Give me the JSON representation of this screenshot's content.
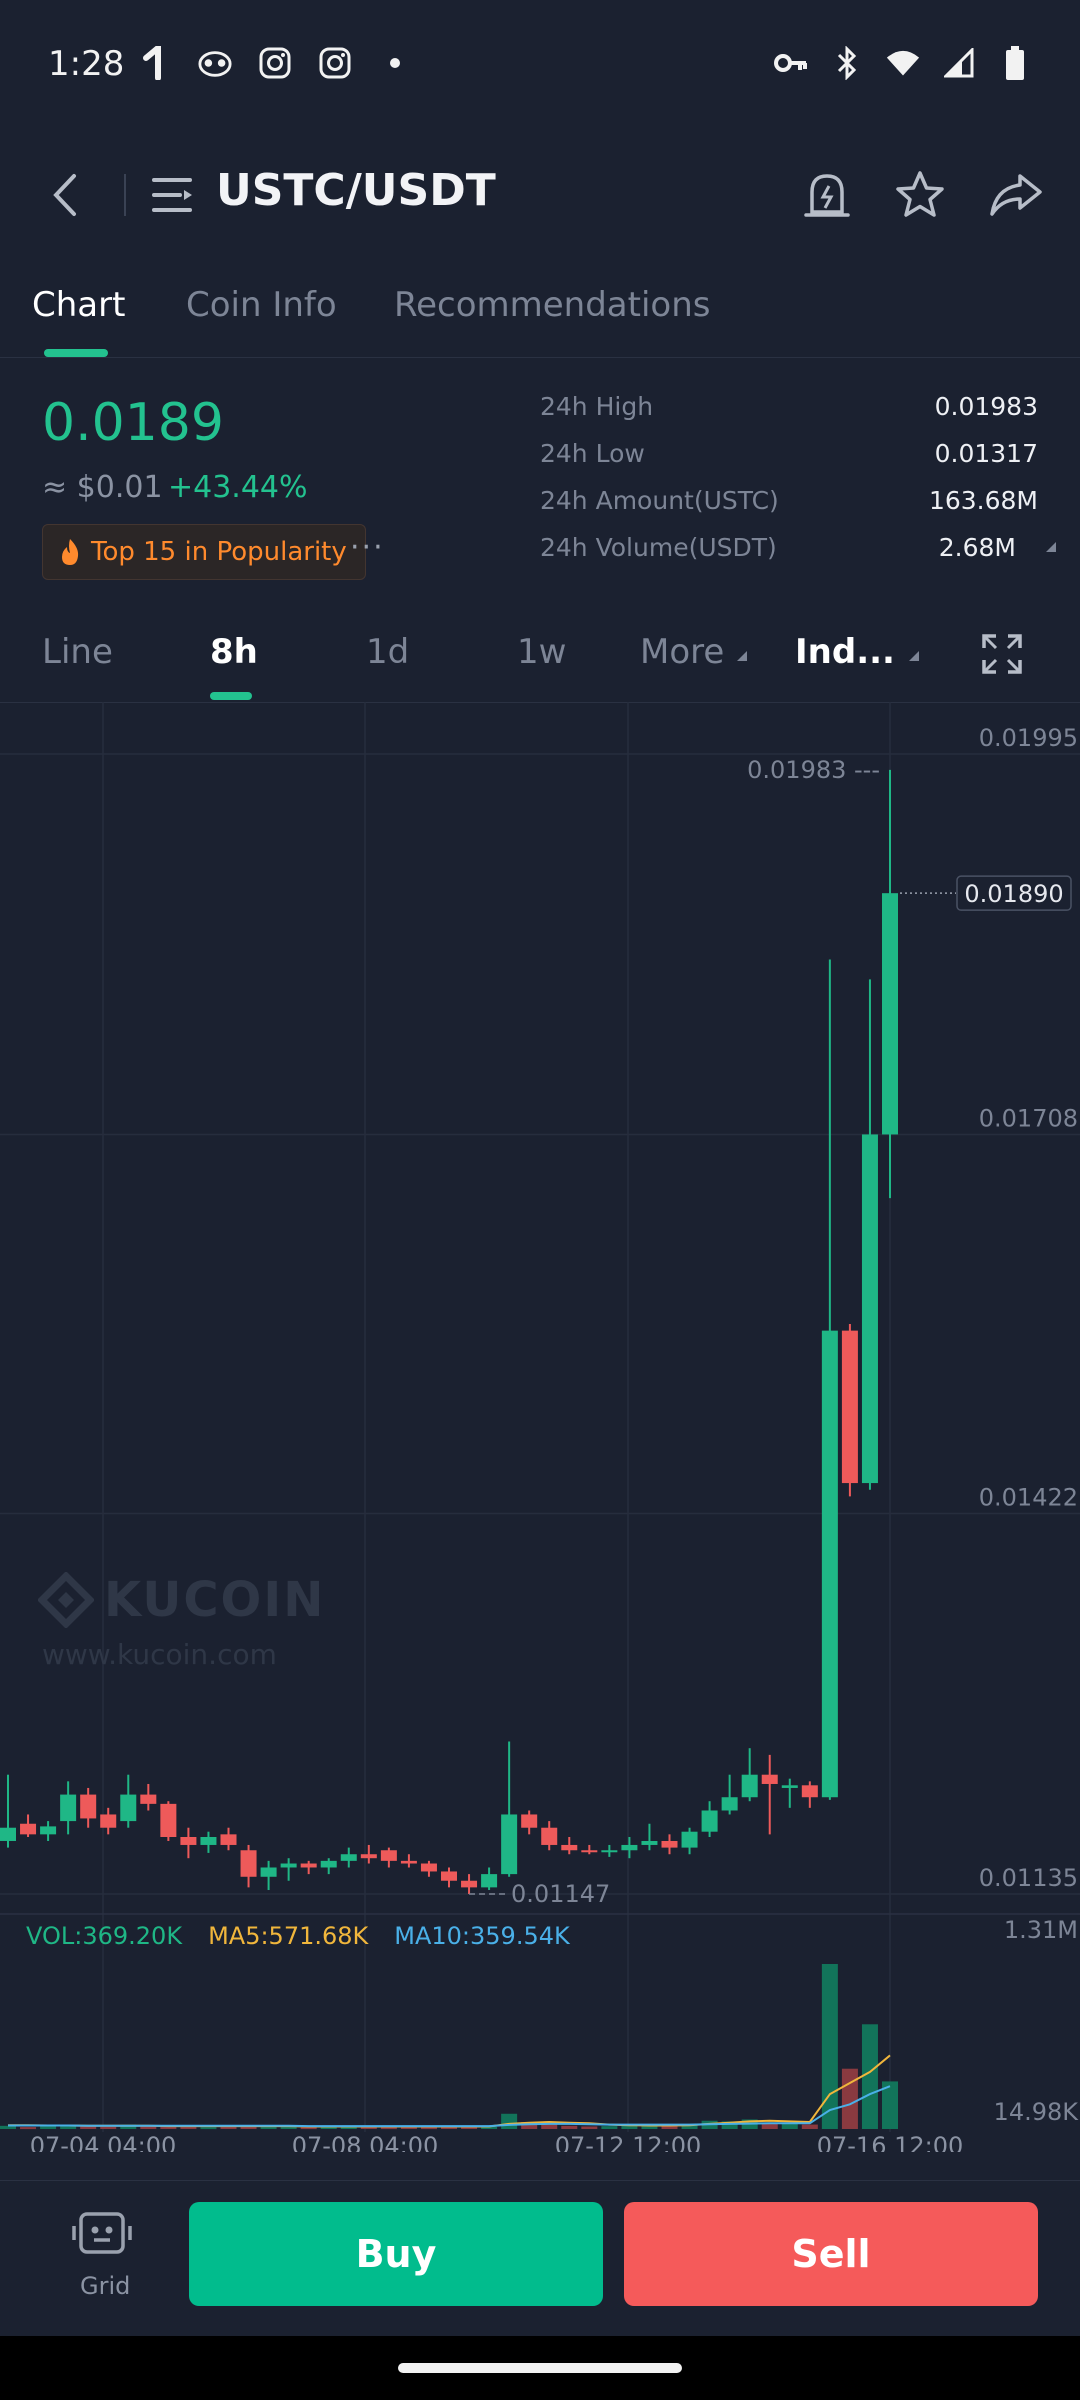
{
  "status_bar": {
    "time": "1:28",
    "left_icons": [
      "notification-icon",
      "owl-app-icon",
      "instagram-icon",
      "instagram-icon",
      "dot-icon"
    ],
    "right_icons": [
      "key-icon",
      "bluetooth-icon",
      "wifi-icon",
      "signal-icon",
      "battery-icon"
    ]
  },
  "header": {
    "title": "USTC/USDT"
  },
  "tabs": [
    "Chart",
    "Coin Info",
    "Recommendations"
  ],
  "ticker": {
    "price": "0.0189",
    "usd": "≈ $0.01",
    "change": "+43.44%",
    "badge": "Top 15 in Popularity",
    "more": "···"
  },
  "stats": [
    {
      "label": "24h High",
      "value": "0.01983"
    },
    {
      "label": "24h Low",
      "value": "0.01317"
    },
    {
      "label": "24h Amount(USTC)",
      "value": "163.68M"
    },
    {
      "label": "24h Volume(USDT)",
      "value": "2.68M"
    }
  ],
  "timeframes": [
    "Line",
    "8h",
    "1d",
    "1w",
    "More",
    "Ind..."
  ],
  "chart_data": {
    "type": "candlestick",
    "price_axis_ticks": [
      "0.01995",
      "0.01708",
      "0.01422",
      "0.01135"
    ],
    "current_price_label": "0.01890",
    "high_marker": "0.01983",
    "low_marker": "0.01147",
    "ylim": [
      0.01135,
      0.01995
    ],
    "volume_axis_ticks": [
      "1.31M",
      "14.98K"
    ],
    "x_ticks": [
      "07-04 04:00",
      "07-08 04:00",
      "07-12 12:00",
      "07-16 12:00"
    ],
    "volume_legend": {
      "vol": "VOL:369.20K",
      "ma5": "MA5:571.68K",
      "ma10": "MA10:359.54K"
    },
    "colors": {
      "up": "#1fb786",
      "down": "#ee5a5a",
      "ma5": "#f0b63c",
      "ma10": "#4ab0e8"
    },
    "watermark": {
      "brand": "KUCOIN",
      "url": "www.kucoin.com"
    },
    "candles": [
      {
        "o": 0.01175,
        "h": 0.01225,
        "l": 0.0117,
        "c": 0.01185
      },
      {
        "o": 0.01188,
        "h": 0.01195,
        "l": 0.01178,
        "c": 0.0118
      },
      {
        "o": 0.0118,
        "h": 0.0119,
        "l": 0.01175,
        "c": 0.01186
      },
      {
        "o": 0.0119,
        "h": 0.0122,
        "l": 0.0118,
        "c": 0.0121
      },
      {
        "o": 0.0121,
        "h": 0.01215,
        "l": 0.01185,
        "c": 0.01192
      },
      {
        "o": 0.01195,
        "h": 0.012,
        "l": 0.0118,
        "c": 0.01185
      },
      {
        "o": 0.0119,
        "h": 0.01225,
        "l": 0.01185,
        "c": 0.0121
      },
      {
        "o": 0.0121,
        "h": 0.01218,
        "l": 0.01198,
        "c": 0.01203
      },
      {
        "o": 0.01203,
        "h": 0.01205,
        "l": 0.01175,
        "c": 0.01178
      },
      {
        "o": 0.01178,
        "h": 0.01185,
        "l": 0.01162,
        "c": 0.01172
      },
      {
        "o": 0.01172,
        "h": 0.01182,
        "l": 0.01166,
        "c": 0.01178
      },
      {
        "o": 0.0118,
        "h": 0.01185,
        "l": 0.01168,
        "c": 0.01172
      },
      {
        "o": 0.01168,
        "h": 0.01172,
        "l": 0.0114,
        "c": 0.01148
      },
      {
        "o": 0.01148,
        "h": 0.0116,
        "l": 0.01138,
        "c": 0.01155
      },
      {
        "o": 0.01155,
        "h": 0.01162,
        "l": 0.01145,
        "c": 0.01158
      },
      {
        "o": 0.01158,
        "h": 0.0116,
        "l": 0.0115,
        "c": 0.01155
      },
      {
        "o": 0.01155,
        "h": 0.01162,
        "l": 0.0115,
        "c": 0.0116
      },
      {
        "o": 0.0116,
        "h": 0.0117,
        "l": 0.01155,
        "c": 0.01165
      },
      {
        "o": 0.01165,
        "h": 0.01172,
        "l": 0.01158,
        "c": 0.01162
      },
      {
        "o": 0.01168,
        "h": 0.0117,
        "l": 0.01155,
        "c": 0.0116
      },
      {
        "o": 0.0116,
        "h": 0.01165,
        "l": 0.01155,
        "c": 0.01158
      },
      {
        "o": 0.01158,
        "h": 0.0116,
        "l": 0.01148,
        "c": 0.01152
      },
      {
        "o": 0.01152,
        "h": 0.01155,
        "l": 0.0114,
        "c": 0.01145
      },
      {
        "o": 0.01145,
        "h": 0.0115,
        "l": 0.01135,
        "c": 0.0114
      },
      {
        "o": 0.0114,
        "h": 0.01155,
        "l": 0.01138,
        "c": 0.0115
      },
      {
        "o": 0.0115,
        "h": 0.0125,
        "l": 0.01148,
        "c": 0.01195
      },
      {
        "o": 0.01195,
        "h": 0.01198,
        "l": 0.0118,
        "c": 0.01185
      },
      {
        "o": 0.01185,
        "h": 0.0119,
        "l": 0.01168,
        "c": 0.01172
      },
      {
        "o": 0.01172,
        "h": 0.01178,
        "l": 0.01165,
        "c": 0.01168
      },
      {
        "o": 0.01168,
        "h": 0.01172,
        "l": 0.01165,
        "c": 0.01167
      },
      {
        "o": 0.01167,
        "h": 0.01172,
        "l": 0.01163,
        "c": 0.01168
      },
      {
        "o": 0.01168,
        "h": 0.01178,
        "l": 0.01162,
        "c": 0.01172
      },
      {
        "o": 0.01172,
        "h": 0.01188,
        "l": 0.01168,
        "c": 0.01175
      },
      {
        "o": 0.01175,
        "h": 0.0118,
        "l": 0.01165,
        "c": 0.0117
      },
      {
        "o": 0.0117,
        "h": 0.01185,
        "l": 0.01165,
        "c": 0.01182
      },
      {
        "o": 0.01182,
        "h": 0.01205,
        "l": 0.01178,
        "c": 0.01198
      },
      {
        "o": 0.01198,
        "h": 0.01225,
        "l": 0.01195,
        "c": 0.01208
      },
      {
        "o": 0.01208,
        "h": 0.01245,
        "l": 0.01205,
        "c": 0.01225
      },
      {
        "o": 0.01225,
        "h": 0.0124,
        "l": 0.0118,
        "c": 0.01218
      },
      {
        "o": 0.01215,
        "h": 0.01222,
        "l": 0.012,
        "c": 0.01217
      },
      {
        "o": 0.01217,
        "h": 0.0122,
        "l": 0.012,
        "c": 0.01208
      },
      {
        "o": 0.01208,
        "h": 0.0184,
        "l": 0.01206,
        "c": 0.0156
      },
      {
        "o": 0.0156,
        "h": 0.01565,
        "l": 0.01435,
        "c": 0.01445
      },
      {
        "o": 0.01445,
        "h": 0.01825,
        "l": 0.0144,
        "c": 0.01708
      },
      {
        "o": 0.01708,
        "h": 0.01983,
        "l": 0.0166,
        "c": 0.0189
      }
    ],
    "volumes": [
      10,
      6,
      8,
      12,
      9,
      7,
      14,
      10,
      8,
      7,
      6,
      9,
      11,
      8,
      7,
      6,
      7,
      8,
      9,
      6,
      7,
      6,
      9,
      8,
      7,
      48,
      22,
      14,
      10,
      8,
      9,
      10,
      12,
      9,
      14,
      26,
      24,
      30,
      20,
      16,
      14,
      520,
      190,
      330,
      150
    ],
    "ma5": [
      12,
      12,
      11,
      11,
      10,
      10,
      10,
      10,
      9,
      9,
      9,
      9,
      9,
      9,
      9,
      8,
      8,
      8,
      8,
      8,
      8,
      8,
      8,
      8,
      8,
      16,
      20,
      22,
      20,
      18,
      14,
      12,
      11,
      11,
      12,
      16,
      20,
      24,
      26,
      24,
      22,
      110,
      145,
      180,
      232
    ],
    "ma10": [
      11,
      11,
      11,
      11,
      10,
      10,
      10,
      10,
      10,
      10,
      10,
      10,
      10,
      10,
      10,
      9,
      9,
      9,
      9,
      9,
      9,
      9,
      9,
      9,
      9,
      13,
      15,
      16,
      16,
      15,
      14,
      14,
      14,
      14,
      14,
      15,
      16,
      17,
      18,
      18,
      18,
      60,
      78,
      110,
      135
    ]
  },
  "bottom": {
    "grid_label": "Grid",
    "buy": "Buy",
    "sell": "Sell"
  }
}
